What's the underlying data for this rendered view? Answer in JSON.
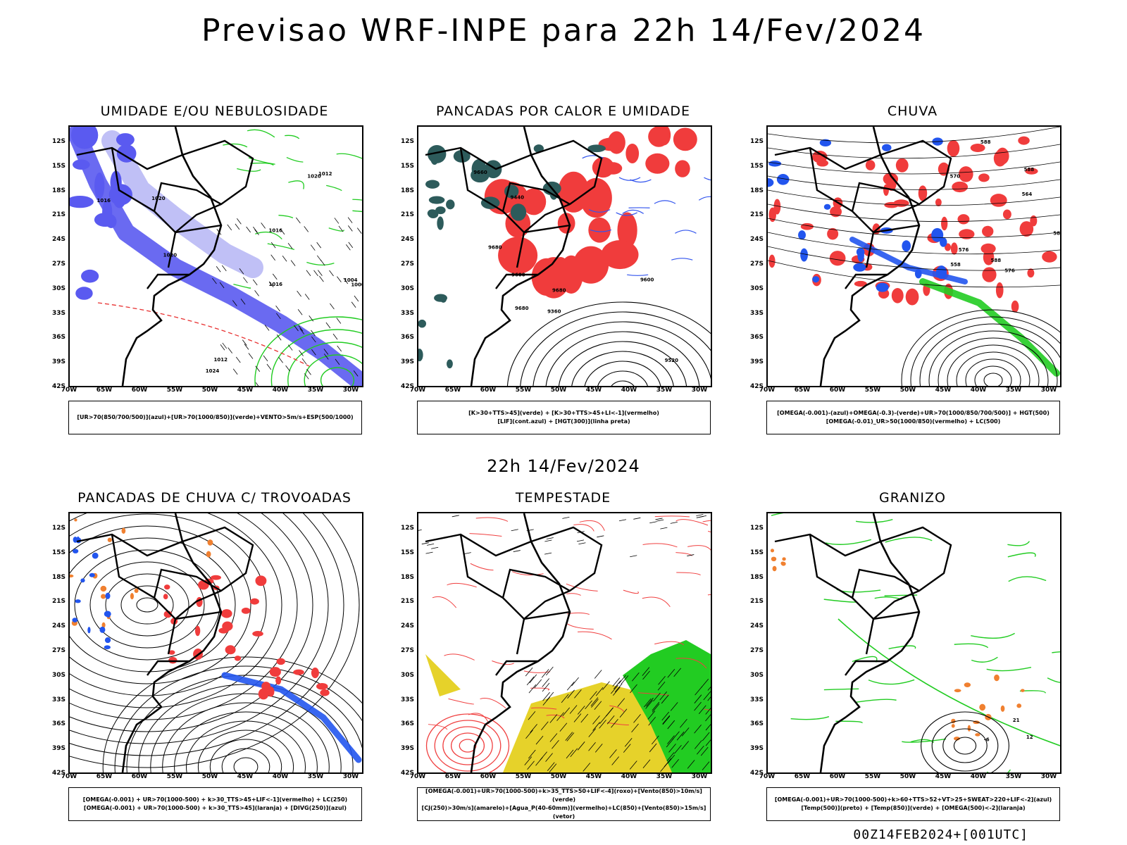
{
  "title": "Previsao WRF-INPE  para 22h 14/Fev/2024",
  "subtitle": "22h 14/Fev/2024",
  "run_stamp": "00Z14FEB2024+[001UTC]",
  "lat_labels": [
    "12S",
    "15S",
    "18S",
    "21S",
    "24S",
    "27S",
    "30S",
    "33S",
    "36S",
    "39S",
    "42S"
  ],
  "lon_labels": [
    "70W",
    "65W",
    "60W",
    "55W",
    "50W",
    "45W",
    "40W",
    "35W",
    "30W"
  ],
  "panels": [
    {
      "title": "UMIDADE E/OU NEBULOSIDADE",
      "caption": [
        "[UR>70(850/700/500)](azul)+[UR>70(1000/850)](verde)+VENTO>5m/s+ESP(500/1000)"
      ],
      "contour_labels": [
        "1016",
        "1020",
        "1016",
        "1012",
        "1020",
        "1024",
        "1016",
        "1020",
        "1012",
        "1000",
        "1004"
      ],
      "colors": {
        "humidity_mid": "#5a5af0",
        "humidity_low": "#22cc22",
        "thickness": "#e83030"
      }
    },
    {
      "title": "PANCADAS POR CALOR E UMIDADE",
      "caption": [
        "[K>30+TTS>45](verde) + [K>30+TTS>45+LI<-1](vermelho)",
        "[LIF](cont.azul) + [HGT(300)](linha preta)"
      ],
      "contour_labels": [
        "9680",
        "9680",
        "9660",
        "9600",
        "9520",
        "9440",
        "9360",
        "9600",
        "9680"
      ],
      "colors": {
        "k_tts": "#2d5b5b",
        "k_tts_li": "#f03c3c",
        "lif": "#3355ee"
      }
    },
    {
      "title": "CHUVA",
      "caption": [
        "[OMEGA(-0.001)-(azul)+OMEGA(-0.3)-(verde)+UR>70(1000/850/700/500)] + HGT(500)",
        "[OMEGA(-0.01)_UR>50(1000/850)(vermelho) + LC(500)"
      ],
      "contour_labels": [
        "588",
        "588",
        "588",
        "588",
        "576",
        "576",
        "570",
        "564",
        "558"
      ],
      "colors": {
        "omega_weak": "#2255ee",
        "omega_strong": "#22cc22",
        "omega_ur": "#f03c3c"
      }
    },
    {
      "title": "PANCADAS DE CHUVA C/ TROVOADAS",
      "caption": [
        "[OMEGA(-0.001) + UR>70(1000-500) + k>30_TTS>45+LIF<-1](vermelho) + LC(250)",
        "[OMEGA(-0.001) + UR>70(1000-500) + k>30_TTS>45](laranja) + [DIVG(250)](azul)"
      ],
      "contour_labels": [],
      "colors": {
        "storms": "#f03c3c",
        "convection": "#f08030",
        "divergence": "#2255ee"
      }
    },
    {
      "title": "TEMPESTADE",
      "caption": [
        "[OMEGA(-0.001)+UR>70(1000-500)+k>35_TTS>50+LIF<-4](roxo)+[Vento(850)>10m/s](verde)",
        "[CJ(250)>30m/s](amarelo)+[Agua_P(40-60mm)](vermelho)+LC(850)+[Vento(850)>15m/s](vetor)"
      ],
      "contour_labels": [],
      "colors": {
        "jet": "#e6d22a",
        "wind": "#22cc22",
        "water": "#f04040"
      }
    },
    {
      "title": "GRANIZO",
      "caption": [
        "[OMEGA(-0.001)+UR>70(1000-500)+k>60+TTS>52+VT>25+SWEAT>220+LIF<-2](azul)",
        "[Temp(500)](preto) + [Temp(850)](verde) + [OMEGA(500)<-2](laranja)"
      ],
      "contour_labels": [
        "21",
        "12",
        "-6"
      ],
      "colors": {
        "temp850": "#22cc22",
        "omega500": "#f08030",
        "temp500": "#000000"
      }
    }
  ]
}
